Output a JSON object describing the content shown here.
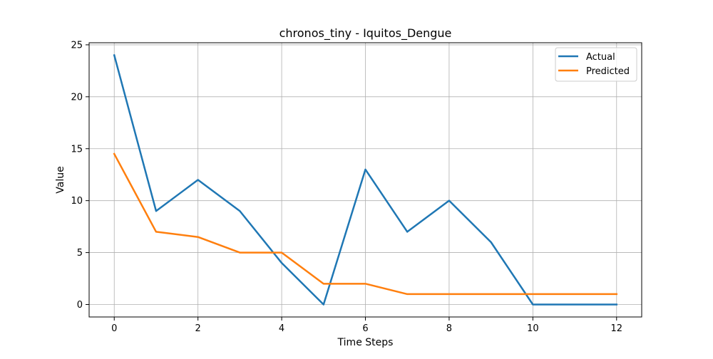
{
  "chart_data": {
    "type": "line",
    "title": "chronos_tiny - Iquitos_Dengue",
    "xlabel": "Time Steps",
    "ylabel": "Value",
    "x": [
      0,
      1,
      2,
      3,
      4,
      5,
      6,
      7,
      8,
      9,
      10,
      11,
      12
    ],
    "xlim": [
      -0.6,
      12.6
    ],
    "ylim": [
      -1.2,
      25.2
    ],
    "xticks": [
      0,
      2,
      4,
      6,
      8,
      10,
      12
    ],
    "yticks": [
      0,
      5,
      10,
      15,
      20,
      25
    ],
    "grid": true,
    "legend_position": "top-right",
    "series": [
      {
        "name": "Actual",
        "color": "#1f77b4",
        "values": [
          24,
          9,
          12,
          9,
          4,
          0,
          13,
          7,
          10,
          6,
          0,
          0,
          0
        ]
      },
      {
        "name": "Predicted",
        "color": "#ff7f0e",
        "values": [
          14.5,
          7,
          6.5,
          5,
          5,
          2,
          2,
          1,
          1,
          1,
          1,
          1,
          1
        ]
      }
    ]
  }
}
